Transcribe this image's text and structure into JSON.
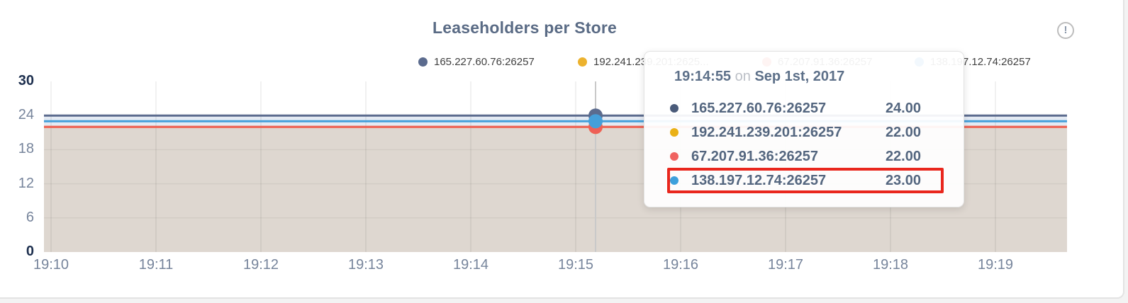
{
  "page": {
    "title": "Leaseholders per Store"
  },
  "header": {
    "info_icon_glyph": "!"
  },
  "legend": {
    "items": [
      {
        "label": "165.227.60.76:26257",
        "color": "#5b6b8e"
      },
      {
        "label": "192.241.239.201:2625...",
        "color": "#ecb22e"
      },
      {
        "label": "67.207.91.36:26257",
        "color": "#ee6057"
      },
      {
        "label": "138.197.12.74:26257",
        "color": "#459fd9"
      }
    ]
  },
  "tooltip": {
    "time": "19:14:55",
    "on_word": "on",
    "date": "Sep 1st, 2017",
    "rows": [
      {
        "name": "165.227.60.76:26257",
        "value": "24.00",
        "color": "#4a5b7a"
      },
      {
        "name": "192.241.239.201:26257",
        "value": "22.00",
        "color": "#eab117"
      },
      {
        "name": "67.207.91.36:26257",
        "value": "22.00",
        "color": "#f06361"
      },
      {
        "name": "138.197.12.74:26257",
        "value": "23.00",
        "color": "#3da0dc"
      }
    ],
    "highlighted_row_index": 3,
    "highlight_color": "#e9261d"
  },
  "chart_data": {
    "type": "line",
    "title": "Leaseholders per Store",
    "x_ticks": [
      "19:10",
      "19:11",
      "19:12",
      "19:13",
      "19:14",
      "19:15",
      "19:16",
      "19:17",
      "19:18",
      "19:19"
    ],
    "y_ticks": [
      "30",
      "24",
      "18",
      "12",
      "6",
      "0"
    ],
    "ylim": [
      0,
      30
    ],
    "grid": true,
    "legend_position": "top",
    "series": [
      {
        "name": "165.227.60.76:26257",
        "color": "#5b6b8e",
        "value": 24
      },
      {
        "name": "192.241.239.201:26257",
        "color": "#ecb22e",
        "value": 22
      },
      {
        "name": "67.207.91.36:26257",
        "color": "#ee6057",
        "value": 22
      },
      {
        "name": "138.197.12.74:26257",
        "color": "#459fd9",
        "value": 23
      }
    ],
    "shape_note": "all series are flat horizontal lines across the whole time window",
    "hover": {
      "time": "19:14:55",
      "date": "Sep 1st, 2017"
    },
    "fills": {
      "upper_band": "#e4eaf3",
      "lower_band": "#ded7d0"
    }
  }
}
